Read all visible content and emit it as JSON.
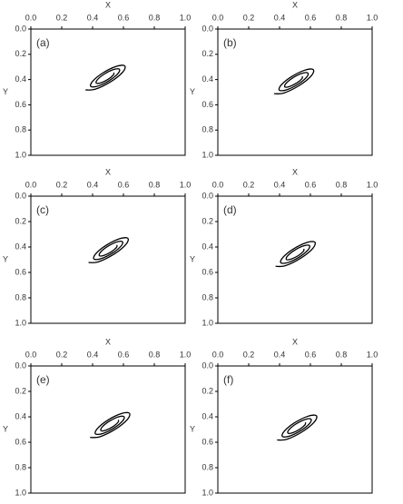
{
  "chart_data": [
    {
      "type": "line",
      "label": "(a)",
      "xlabel": "X",
      "ylabel": "Y",
      "color": "#000000",
      "x": [
        0.538,
        0.535,
        0.502,
        0.456,
        0.425,
        0.43,
        0.474,
        0.533,
        0.573,
        0.565,
        0.51,
        0.437,
        0.389,
        0.4,
        0.466,
        0.553,
        0.608,
        0.596,
        0.518,
        0.417,
        0.354
      ],
      "values": [
        0.344,
        0.363,
        0.397,
        0.425,
        0.429,
        0.403,
        0.358,
        0.322,
        0.318,
        0.352,
        0.407,
        0.451,
        0.455,
        0.414,
        0.348,
        0.296,
        0.291,
        0.34,
        0.417,
        0.477,
        0.482
      ],
      "xlim": [
        0,
        1
      ],
      "ylim": [
        0,
        1
      ],
      "xticks": [
        {
          "value": 0,
          "label": "0.0"
        },
        0.2,
        0.4,
        0.6,
        0.8,
        {
          "value": 1,
          "label": "1.0"
        }
      ],
      "yticks": [
        {
          "value": 0,
          "label": "0.0"
        },
        0.2,
        0.4,
        0.6,
        0.8,
        {
          "value": 1,
          "label": "1.0"
        }
      ]
    },
    {
      "type": "line",
      "label": "(b)",
      "xlabel": "X",
      "ylabel": "Y",
      "color": "#000000",
      "x": [
        0.548,
        0.545,
        0.512,
        0.466,
        0.435,
        0.44,
        0.484,
        0.543,
        0.583,
        0.575,
        0.52,
        0.447,
        0.399,
        0.41,
        0.476,
        0.563,
        0.618,
        0.606,
        0.528,
        0.427,
        0.364
      ],
      "values": [
        0.374,
        0.393,
        0.427,
        0.455,
        0.459,
        0.433,
        0.388,
        0.352,
        0.348,
        0.382,
        0.437,
        0.481,
        0.485,
        0.444,
        0.378,
        0.326,
        0.321,
        0.37,
        0.447,
        0.507,
        0.512
      ],
      "xlim": [
        0,
        1
      ],
      "ylim": [
        0,
        1
      ],
      "xticks": [
        {
          "value": 0,
          "label": "0.0"
        },
        0.2,
        0.4,
        0.6,
        0.8,
        {
          "value": 1,
          "label": "1.0"
        }
      ],
      "yticks": [
        {
          "value": 0,
          "label": "0.0"
        },
        0.2,
        0.4,
        0.6,
        0.8,
        {
          "value": 1,
          "label": "1.0"
        }
      ]
    },
    {
      "type": "line",
      "label": "(c)",
      "xlabel": "X",
      "ylabel": "Y",
      "color": "#000000",
      "x": [
        0.558,
        0.555,
        0.522,
        0.476,
        0.445,
        0.45,
        0.494,
        0.553,
        0.593,
        0.585,
        0.53,
        0.457,
        0.409,
        0.42,
        0.486,
        0.573,
        0.628,
        0.616,
        0.538,
        0.437,
        0.374
      ],
      "values": [
        0.384,
        0.403,
        0.437,
        0.465,
        0.469,
        0.443,
        0.398,
        0.362,
        0.358,
        0.392,
        0.447,
        0.491,
        0.495,
        0.454,
        0.388,
        0.336,
        0.331,
        0.38,
        0.457,
        0.517,
        0.522
      ],
      "xlim": [
        0,
        1
      ],
      "ylim": [
        0,
        1
      ],
      "xticks": [
        {
          "value": 0,
          "label": "0.0"
        },
        0.2,
        0.4,
        0.6,
        0.8,
        {
          "value": 1,
          "label": "1.0"
        }
      ],
      "yticks": [
        {
          "value": 0,
          "label": "0.0"
        },
        0.2,
        0.4,
        0.6,
        0.8,
        {
          "value": 1,
          "label": "1.0"
        }
      ]
    },
    {
      "type": "line",
      "label": "(d)",
      "xlabel": "X",
      "ylabel": "Y",
      "color": "#000000",
      "x": [
        0.558,
        0.555,
        0.522,
        0.476,
        0.445,
        0.45,
        0.494,
        0.553,
        0.593,
        0.585,
        0.53,
        0.457,
        0.409,
        0.42,
        0.486,
        0.573,
        0.628,
        0.616,
        0.538,
        0.437,
        0.374
      ],
      "values": [
        0.414,
        0.433,
        0.467,
        0.495,
        0.499,
        0.473,
        0.428,
        0.392,
        0.388,
        0.422,
        0.477,
        0.521,
        0.525,
        0.484,
        0.418,
        0.366,
        0.361,
        0.41,
        0.487,
        0.547,
        0.552
      ],
      "xlim": [
        0,
        1
      ],
      "ylim": [
        0,
        1
      ],
      "xticks": [
        {
          "value": 0,
          "label": "0.0"
        },
        0.2,
        0.4,
        0.6,
        0.8,
        {
          "value": 1,
          "label": "1.0"
        }
      ],
      "yticks": [
        {
          "value": 0,
          "label": "0.0"
        },
        0.2,
        0.4,
        0.6,
        0.8,
        {
          "value": 1,
          "label": "1.0"
        }
      ]
    },
    {
      "type": "line",
      "label": "(e)",
      "xlabel": "X",
      "ylabel": "Y",
      "color": "#000000",
      "x": [
        0.568,
        0.565,
        0.532,
        0.486,
        0.455,
        0.46,
        0.504,
        0.563,
        0.603,
        0.595,
        0.54,
        0.467,
        0.419,
        0.43,
        0.496,
        0.583,
        0.638,
        0.626,
        0.548,
        0.447,
        0.384
      ],
      "values": [
        0.424,
        0.443,
        0.477,
        0.505,
        0.509,
        0.483,
        0.438,
        0.402,
        0.398,
        0.432,
        0.487,
        0.531,
        0.535,
        0.494,
        0.428,
        0.376,
        0.371,
        0.42,
        0.497,
        0.557,
        0.562
      ],
      "xlim": [
        0,
        1
      ],
      "ylim": [
        0,
        1
      ],
      "xticks": [
        {
          "value": 0,
          "label": "0.0"
        },
        0.2,
        0.4,
        0.6,
        0.8,
        {
          "value": 1,
          "label": "1.0"
        }
      ],
      "yticks": [
        {
          "value": 0,
          "label": "0.0"
        },
        0.2,
        0.4,
        0.6,
        0.8,
        {
          "value": 1,
          "label": "1.0"
        }
      ]
    },
    {
      "type": "line",
      "label": "(f)",
      "xlabel": "X",
      "ylabel": "Y",
      "color": "#000000",
      "x": [
        0.568,
        0.565,
        0.532,
        0.486,
        0.455,
        0.46,
        0.504,
        0.563,
        0.603,
        0.595,
        0.54,
        0.467,
        0.419,
        0.43,
        0.496,
        0.583,
        0.638,
        0.626,
        0.548,
        0.447,
        0.384
      ],
      "values": [
        0.444,
        0.463,
        0.497,
        0.525,
        0.529,
        0.503,
        0.458,
        0.422,
        0.418,
        0.452,
        0.507,
        0.551,
        0.555,
        0.514,
        0.448,
        0.396,
        0.391,
        0.44,
        0.517,
        0.577,
        0.582
      ],
      "xlim": [
        0,
        1
      ],
      "ylim": [
        0,
        1
      ],
      "xticks": [
        {
          "value": 0,
          "label": "0.0"
        },
        0.2,
        0.4,
        0.6,
        0.8,
        {
          "value": 1,
          "label": "1.0"
        }
      ],
      "yticks": [
        {
          "value": 0,
          "label": "0.0"
        },
        0.2,
        0.4,
        0.6,
        0.8,
        {
          "value": 1,
          "label": "1.0"
        }
      ]
    }
  ]
}
